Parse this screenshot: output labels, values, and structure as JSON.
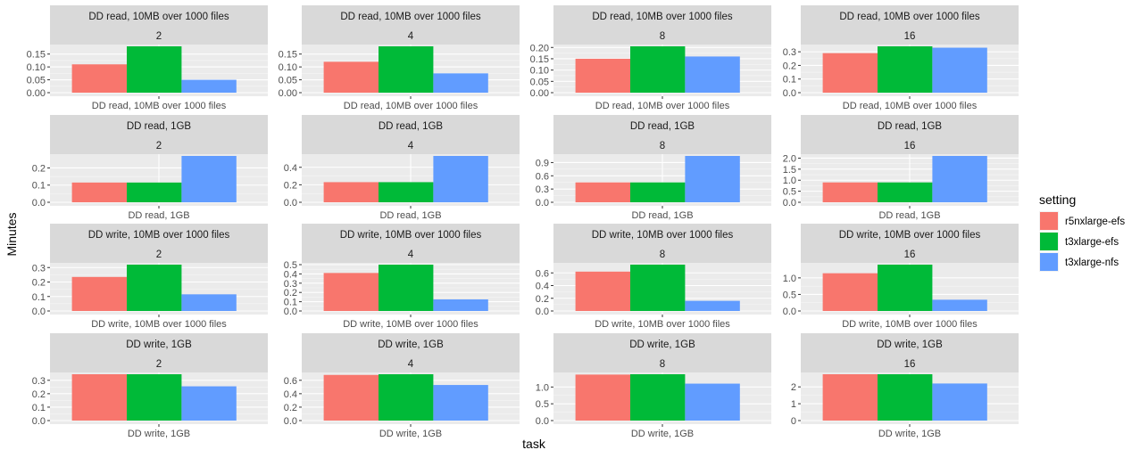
{
  "chart_data": {
    "type": "bar",
    "xlabel": "task",
    "ylabel": "Minutes",
    "legend": {
      "title": "setting",
      "placement": "right",
      "entries": [
        "r5nxlarge-efs",
        "t3xlarge-efs",
        "t3xlarge-nfs"
      ]
    },
    "series_colors": {
      "r5nxlarge-efs": "#F8766D",
      "t3xlarge-efs": "#00BA38",
      "t3xlarge-nfs": "#619CFF"
    },
    "grid": true,
    "facet_rows": [
      {
        "task": "DD read, 10MB over 1000 files",
        "panels": [
          {
            "nodes": "2",
            "ylim": [
              0,
              0.18
            ],
            "yticks": [
              0.0,
              0.05,
              0.1,
              0.15
            ],
            "ytick_labels": [
              "0.00",
              "0.05",
              "0.10",
              "0.15"
            ],
            "values": [
              0.11,
              0.18,
              0.05
            ]
          },
          {
            "nodes": "4",
            "ylim": [
              0,
              0.18
            ],
            "yticks": [
              0.0,
              0.05,
              0.1,
              0.15
            ],
            "ytick_labels": [
              "0.00",
              "0.05",
              "0.10",
              "0.15"
            ],
            "values": [
              0.12,
              0.18,
              0.075
            ]
          },
          {
            "nodes": "8",
            "ylim": [
              0,
              0.205
            ],
            "yticks": [
              0.0,
              0.05,
              0.1,
              0.15,
              0.2
            ],
            "ytick_labels": [
              "0.00",
              "0.05",
              "0.10",
              "0.15",
              "0.20"
            ],
            "values": [
              0.15,
              0.205,
              0.16
            ]
          },
          {
            "nodes": "16",
            "ylim": [
              0,
              0.34
            ],
            "yticks": [
              0.0,
              0.1,
              0.2,
              0.3
            ],
            "ytick_labels": [
              "0.0",
              "0.1",
              "0.2",
              "0.3"
            ],
            "values": [
              0.29,
              0.34,
              0.33
            ]
          }
        ]
      },
      {
        "task": "DD read, 1GB",
        "panels": [
          {
            "nodes": "2",
            "ylim": [
              0,
              0.27
            ],
            "yticks": [
              0.0,
              0.1,
              0.2
            ],
            "ytick_labels": [
              "0.0",
              "0.1",
              "0.2"
            ],
            "values": [
              0.115,
              0.115,
              0.27
            ]
          },
          {
            "nodes": "4",
            "ylim": [
              0,
              0.53
            ],
            "yticks": [
              0.0,
              0.2,
              0.4
            ],
            "ytick_labels": [
              "0.0",
              "0.2",
              "0.4"
            ],
            "values": [
              0.23,
              0.23,
              0.53
            ]
          },
          {
            "nodes": "8",
            "ylim": [
              0,
              1.05
            ],
            "yticks": [
              0.0,
              0.3,
              0.6,
              0.9
            ],
            "ytick_labels": [
              "0.0",
              "0.3",
              "0.6",
              "0.9"
            ],
            "values": [
              0.45,
              0.45,
              1.05
            ]
          },
          {
            "nodes": "16",
            "ylim": [
              0,
              2.1
            ],
            "yticks": [
              0.0,
              0.5,
              1.0,
              1.5,
              2.0
            ],
            "ytick_labels": [
              "0.0",
              "0.5",
              "1.0",
              "1.5",
              "2.0"
            ],
            "values": [
              0.9,
              0.9,
              2.1
            ]
          }
        ]
      },
      {
        "task": "DD write, 10MB over 1000 files",
        "panels": [
          {
            "nodes": "2",
            "ylim": [
              0,
              0.32
            ],
            "yticks": [
              0.0,
              0.1,
              0.2,
              0.3
            ],
            "ytick_labels": [
              "0.0",
              "0.1",
              "0.2",
              "0.3"
            ],
            "values": [
              0.235,
              0.32,
              0.115
            ]
          },
          {
            "nodes": "4",
            "ylim": [
              0,
              0.5
            ],
            "yticks": [
              0.0,
              0.1,
              0.2,
              0.3,
              0.4,
              0.5
            ],
            "ytick_labels": [
              "0.0",
              "0.1",
              "0.2",
              "0.3",
              "0.4",
              "0.5"
            ],
            "values": [
              0.41,
              0.5,
              0.125
            ]
          },
          {
            "nodes": "8",
            "ylim": [
              0,
              0.73
            ],
            "yticks": [
              0.0,
              0.2,
              0.4,
              0.6
            ],
            "ytick_labels": [
              "0.0",
              "0.2",
              "0.4",
              "0.6"
            ],
            "values": [
              0.62,
              0.73,
              0.16
            ]
          },
          {
            "nodes": "16",
            "ylim": [
              0,
              1.4
            ],
            "yticks": [
              0.0,
              0.5,
              1.0
            ],
            "ytick_labels": [
              "0.0",
              "0.5",
              "1.0"
            ],
            "values": [
              1.14,
              1.4,
              0.34
            ]
          }
        ]
      },
      {
        "task": "DD write, 1GB",
        "panels": [
          {
            "nodes": "2",
            "ylim": [
              0,
              0.345
            ],
            "yticks": [
              0.0,
              0.1,
              0.2,
              0.3
            ],
            "ytick_labels": [
              "0.0",
              "0.1",
              "0.2",
              "0.3"
            ],
            "values": [
              0.345,
              0.345,
              0.255
            ]
          },
          {
            "nodes": "4",
            "ylim": [
              0,
              0.69
            ],
            "yticks": [
              0.0,
              0.2,
              0.4,
              0.6
            ],
            "ytick_labels": [
              "0.0",
              "0.2",
              "0.4",
              "0.6"
            ],
            "values": [
              0.68,
              0.69,
              0.53
            ]
          },
          {
            "nodes": "8",
            "ylim": [
              0,
              1.38
            ],
            "yticks": [
              0.0,
              0.5,
              1.0
            ],
            "ytick_labels": [
              "0.0",
              "0.5",
              "1.0"
            ],
            "values": [
              1.37,
              1.38,
              1.1
            ]
          },
          {
            "nodes": "16",
            "ylim": [
              0,
              2.75
            ],
            "yticks": [
              0,
              1,
              2
            ],
            "ytick_labels": [
              "0",
              "1",
              "2"
            ],
            "values": [
              2.75,
              2.75,
              2.2
            ]
          }
        ]
      }
    ]
  }
}
